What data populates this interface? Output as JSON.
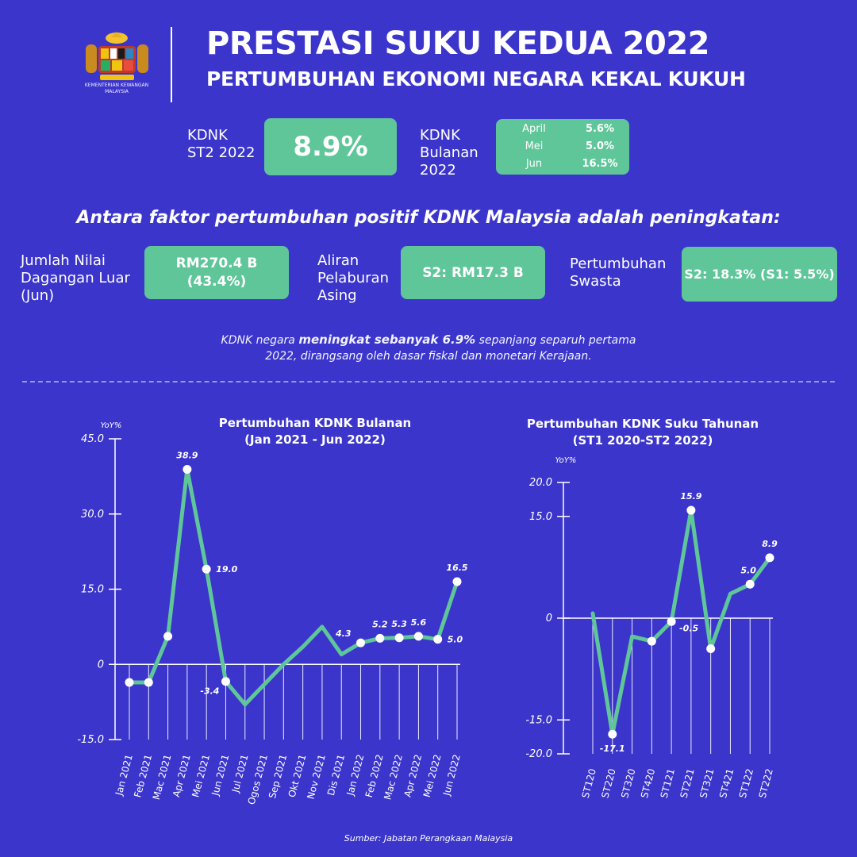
{
  "header": {
    "logo_caption_line1": "KEMENTERIAN KEWANGAN",
    "logo_caption_line2": "MALAYSIA",
    "title": "PRESTASI SUKU KEDUA 2022",
    "subtitle": "PERTUMBUHAN EKONOMI NEGARA KEKAL KUKUH"
  },
  "kdnk": {
    "label_line1": "KDNK",
    "label_line2": "ST2 2022",
    "value": "8.9%",
    "monthly_label_line1": "KDNK",
    "monthly_label_line2": "Bulanan",
    "monthly_label_line3": "2022",
    "monthly": [
      {
        "month": "April",
        "value": "5.6%"
      },
      {
        "month": "Mei",
        "value": "5.0%"
      },
      {
        "month": "Jun",
        "value": "16.5%"
      }
    ]
  },
  "factors": {
    "heading": "Antara faktor pertumbuhan positif KDNK Malaysia adalah peningkatan:",
    "trade_label_line1": "Jumlah Nilai",
    "trade_label_line2": "Dagangan Luar",
    "trade_label_line3": "(Jun)",
    "trade_value_line1": "RM270.4 B",
    "trade_value_line2": "(43.4%)",
    "fdi_label_line1": "Aliran",
    "fdi_label_line2": "Pelaburan",
    "fdi_label_line3": "Asing",
    "fdi_value": "S2: RM17.3 B",
    "private_label_line1": "Pertumbuhan",
    "private_label_line2": "Swasta",
    "private_value": "S2: 18.3% (S1: 5.5%)"
  },
  "note": {
    "part1": "KDNK negara ",
    "bold": "meningkat sebanyak 6.9%",
    "part2": " sepanjang separuh pertama",
    "line2": "2022, dirangsang oleh dasar fiskal dan monetari Kerajaan."
  },
  "source": "Sumber: Jabatan Perangkaan Malaysia",
  "colors": {
    "background": "#3b35cc",
    "accent_green": "#5fc69a"
  },
  "chart_data": [
    {
      "type": "line",
      "title_line1": "Pertumbuhan KDNK Bulanan",
      "title_line2": "(Jan 2021 - Jun 2022)",
      "ylabel": "YoY%",
      "ylim": [
        -15,
        45
      ],
      "yticks": [
        45,
        30,
        15,
        0,
        -15
      ],
      "ytick_labels": [
        "45.0",
        "30.0",
        "15.0",
        "0",
        "-15.0"
      ],
      "categories": [
        "Jan 2021",
        "Feb 2021",
        "Mac 2021",
        "Apr 2021",
        "Mei 2021",
        "Jun 2021",
        "Jul 2021",
        "Ogos 2021",
        "Sep 2021",
        "Okt 2021",
        "Nov 2021",
        "Dis 2021",
        "Jan 2022",
        "Feb 2022",
        "Mac 2022",
        "Apr 2022",
        "Mei 2022",
        "Jun 2022"
      ],
      "values": [
        -3.6,
        -3.6,
        5.6,
        38.9,
        19.0,
        -3.4,
        -8.0,
        -4.0,
        0.0,
        3.5,
        7.5,
        2.0,
        4.3,
        5.2,
        5.3,
        5.6,
        5.0,
        16.5
      ],
      "markers": [
        0,
        1,
        2,
        3,
        4,
        5,
        12,
        13,
        14,
        15,
        16,
        17
      ],
      "data_labels": [
        {
          "index": 3,
          "text": "38.9"
        },
        {
          "index": 4,
          "text": "19.0"
        },
        {
          "index": 5,
          "text": "-3.4"
        },
        {
          "index": 12,
          "text": "4.3"
        },
        {
          "index": 13,
          "text": "5.2"
        },
        {
          "index": 14,
          "text": "5.3"
        },
        {
          "index": 15,
          "text": "5.6"
        },
        {
          "index": 16,
          "text": "5.0"
        },
        {
          "index": 17,
          "text": "16.5"
        }
      ],
      "grid": "vertical",
      "line_color": "#5fc69a"
    },
    {
      "type": "line",
      "title_line1": "Pertumbuhan KDNK Suku Tahunan",
      "title_line2": "(ST1 2020-ST2 2022)",
      "ylabel": "YoY%",
      "ylim": [
        -20,
        20
      ],
      "yticks": [
        20,
        15,
        0,
        -15,
        -20
      ],
      "ytick_labels": [
        "20.0",
        "15.0",
        "0",
        "-15.0",
        "-20.0"
      ],
      "categories": [
        "ST120",
        "ST220",
        "ST320",
        "ST420",
        "ST121",
        "ST221",
        "ST321",
        "ST421",
        "ST122",
        "ST222"
      ],
      "values": [
        0.7,
        -17.1,
        -2.7,
        -3.4,
        -0.5,
        15.9,
        -4.5,
        3.6,
        5.0,
        8.9
      ],
      "markers": [
        1,
        3,
        4,
        5,
        6,
        8,
        9
      ],
      "data_labels": [
        {
          "index": 1,
          "text": "-17.1"
        },
        {
          "index": 4,
          "text": "-0.5"
        },
        {
          "index": 5,
          "text": "15.9"
        },
        {
          "index": 8,
          "text": "5.0"
        },
        {
          "index": 9,
          "text": "8.9"
        }
      ],
      "grid": "vertical",
      "line_color": "#5fc69a"
    }
  ]
}
